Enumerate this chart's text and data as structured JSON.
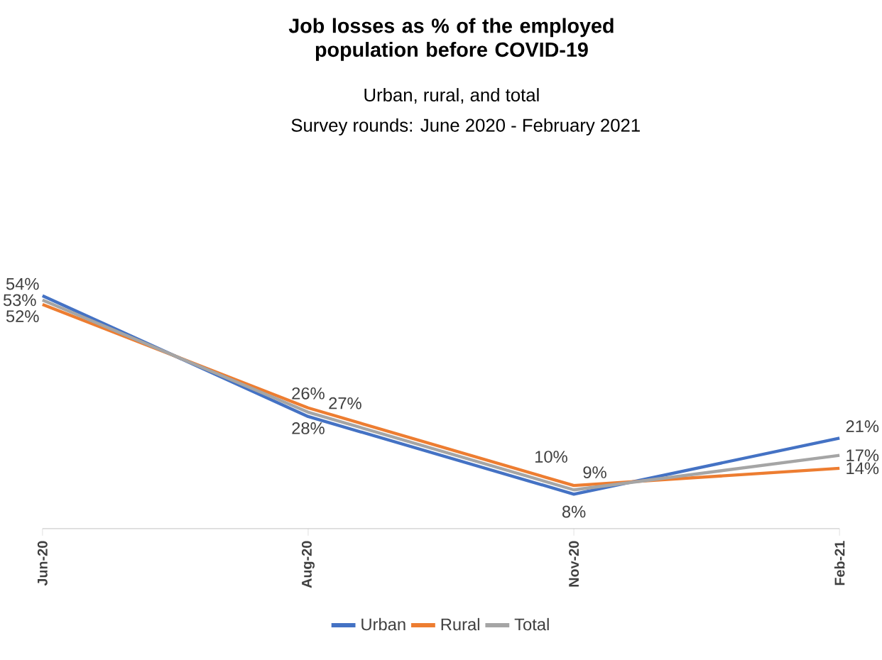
{
  "chart_data": {
    "type": "line",
    "title": "Job losses as % of the employed population before COVID-19",
    "subtitle": "Urban, rural, and total",
    "annotations": [
      "Survey rounds: June 2020 - February 2021"
    ],
    "categories": [
      "Jun-20",
      "Aug-20",
      "Nov-20",
      "Feb-21"
    ],
    "series": [
      {
        "name": "Urban",
        "color": "#4472c4",
        "values": [
          54,
          26,
          8,
          21
        ],
        "value_labels": [
          "54%",
          "26%",
          "8%",
          "21%"
        ]
      },
      {
        "name": "Rural",
        "color": "#ed7d31",
        "values": [
          52,
          28,
          10,
          14
        ],
        "value_labels": [
          "52%",
          "28%",
          "10%",
          "14%"
        ]
      },
      {
        "name": "Total",
        "color": "#a5a5a5",
        "values": [
          53,
          27,
          9,
          17
        ],
        "value_labels": [
          "53%",
          "27%",
          "9%",
          "17%"
        ]
      }
    ],
    "tick_labels": "x",
    "legend": "bottom"
  }
}
